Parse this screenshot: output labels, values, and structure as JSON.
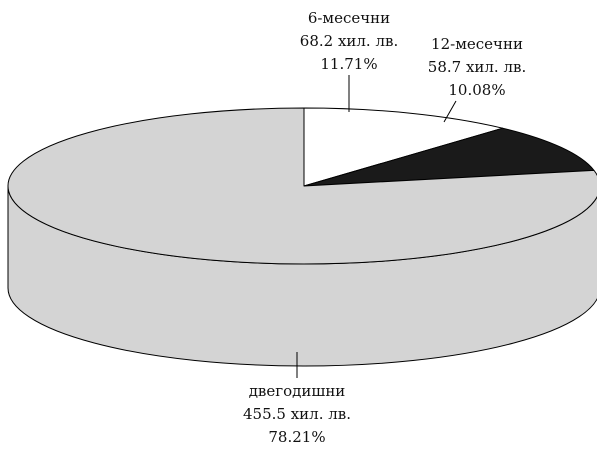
{
  "chart_data": {
    "type": "pie",
    "style": "3d",
    "title": "",
    "slices": [
      {
        "name": "6-месечни",
        "value": 68.2,
        "value_label": "68.2 хил. лв.",
        "percent": 11.71,
        "percent_label": "11.71%",
        "color": "#ffffff"
      },
      {
        "name": "12-месечни",
        "value": 58.7,
        "value_label": "58.7 хил. лв.",
        "percent": 10.08,
        "percent_label": "10.08%",
        "color": "#1a1a1a"
      },
      {
        "name": "двегодишни",
        "value": 455.5,
        "value_label": "455.5 хил. лв.",
        "percent": 78.21,
        "percent_label": "78.21%",
        "color": "#d4d4d4"
      }
    ]
  }
}
